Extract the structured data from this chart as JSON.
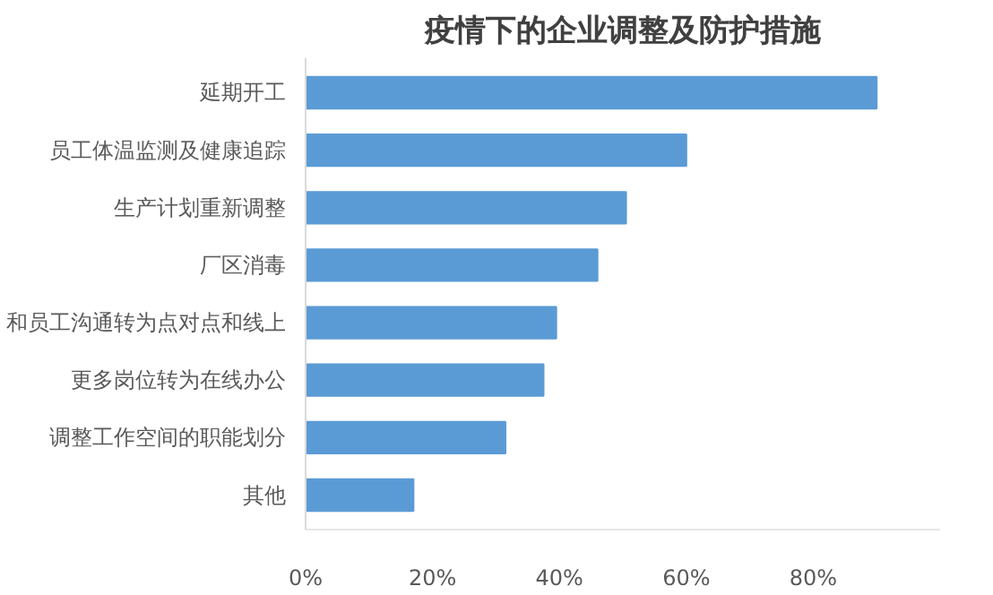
{
  "chart_data": {
    "type": "bar",
    "orientation": "horizontal",
    "title": "疫情下的企业调整及防护措施",
    "categories": [
      "延期开工",
      "员工体温监测及健康追踪",
      "生产计划重新调整",
      "厂区消毒",
      "和员工沟通转为点对点和线上",
      "更多岗位转为在线办公",
      "调整工作空间的职能划分",
      "其他"
    ],
    "values": [
      90,
      60,
      50.5,
      46,
      39.5,
      37.5,
      31.5,
      17
    ],
    "color": "#5b9bd5",
    "xlim": [
      0,
      100
    ],
    "xticks": [
      {
        "value": 0,
        "label": "0%"
      },
      {
        "value": 20,
        "label": "20%"
      },
      {
        "value": 40,
        "label": "40%"
      },
      {
        "value": 60,
        "label": "60%"
      },
      {
        "value": 80,
        "label": "80%"
      }
    ],
    "grid": false
  }
}
